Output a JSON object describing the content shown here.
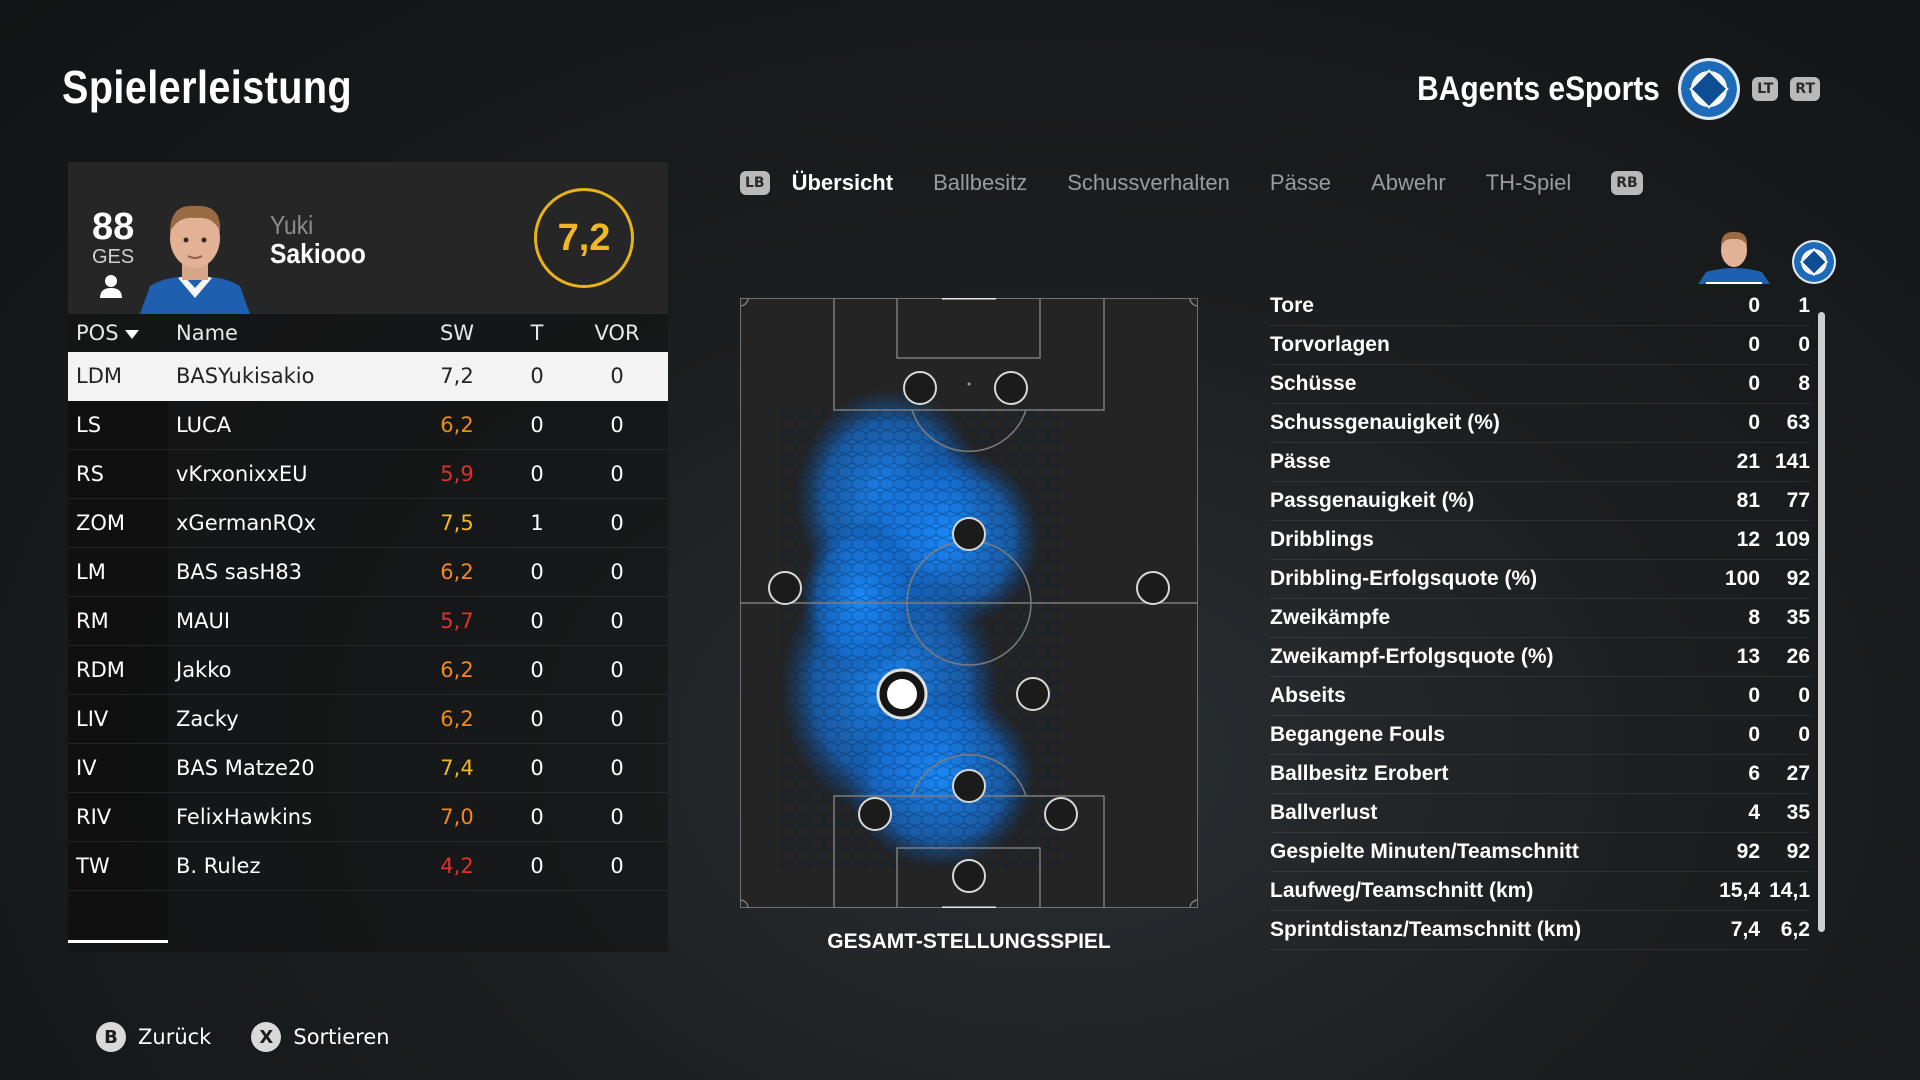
{
  "page_title": "Spielerleistung",
  "team": {
    "name": "BAgents eSports",
    "lt": "LT",
    "rt": "RT"
  },
  "player": {
    "overall": "88",
    "overall_label": "GES",
    "first_name": "Yuki",
    "last_name": "Sakiooo",
    "rating": "7,2"
  },
  "table": {
    "headers": {
      "pos": "POS",
      "name": "Name",
      "sw": "SW",
      "t": "T",
      "vor": "VOR"
    },
    "rows": [
      {
        "pos": "LDM",
        "name": "BASYukisakio",
        "sw": "7,2",
        "t": "0",
        "vor": "0"
      },
      {
        "pos": "LS",
        "name": "LUCA",
        "sw": "6,2",
        "t": "0",
        "vor": "0"
      },
      {
        "pos": "RS",
        "name": "vKrxonixxEU",
        "sw": "5,9",
        "t": "0",
        "vor": "0"
      },
      {
        "pos": "ZOM",
        "name": "xGermanRQx",
        "sw": "7,5",
        "t": "1",
        "vor": "0"
      },
      {
        "pos": "LM",
        "name": "BAS sasH83",
        "sw": "6,2",
        "t": "0",
        "vor": "0"
      },
      {
        "pos": "RM",
        "name": "MAUI",
        "sw": "5,7",
        "t": "0",
        "vor": "0"
      },
      {
        "pos": "RDM",
        "name": "Jakko",
        "sw": "6,2",
        "t": "0",
        "vor": "0"
      },
      {
        "pos": "LIV",
        "name": "Zacky",
        "sw": "6,2",
        "t": "0",
        "vor": "0"
      },
      {
        "pos": "IV",
        "name": "BAS Matze20",
        "sw": "7,4",
        "t": "0",
        "vor": "0"
      },
      {
        "pos": "RIV",
        "name": "FelixHawkins",
        "sw": "7,0",
        "t": "0",
        "vor": "0"
      },
      {
        "pos": "TW",
        "name": "B. Rulez",
        "sw": "4,2",
        "t": "0",
        "vor": "0"
      }
    ],
    "sw_colors": [
      "#222222",
      "#f08a1c",
      "#e0312b",
      "#f2b822",
      "#f08a1c",
      "#e0312b",
      "#f08a1c",
      "#f08a1c",
      "#f2b822",
      "#f08a1c",
      "#e0312b"
    ]
  },
  "tabs": {
    "lb": "LB",
    "rb": "RB",
    "items": [
      "Übersicht",
      "Ballbesitz",
      "Schussverhalten",
      "Pässe",
      "Abwehr",
      "TH-Spiel"
    ],
    "active": "Übersicht"
  },
  "pitch": {
    "caption": "GESAMT-STELLUNGSSPIEL"
  },
  "stats": [
    {
      "label": "Tore",
      "player": "0",
      "team": "1"
    },
    {
      "label": "Torvorlagen",
      "player": "0",
      "team": "0"
    },
    {
      "label": "Schüsse",
      "player": "0",
      "team": "8"
    },
    {
      "label": "Schussgenauigkeit (%)",
      "player": "0",
      "team": "63"
    },
    {
      "label": "Pässe",
      "player": "21",
      "team": "141"
    },
    {
      "label": "Passgenauigkeit (%)",
      "player": "81",
      "team": "77"
    },
    {
      "label": "Dribblings",
      "player": "12",
      "team": "109"
    },
    {
      "label": "Dribbling-Erfolgsquote (%)",
      "player": "100",
      "team": "92"
    },
    {
      "label": "Zweikämpfe",
      "player": "8",
      "team": "35"
    },
    {
      "label": "Zweikampf-Erfolgsquote (%)",
      "player": "13",
      "team": "26"
    },
    {
      "label": "Abseits",
      "player": "0",
      "team": "0"
    },
    {
      "label": "Begangene Fouls",
      "player": "0",
      "team": "0"
    },
    {
      "label": "Ballbesitz Erobert",
      "player": "6",
      "team": "27"
    },
    {
      "label": "Ballverlust",
      "player": "4",
      "team": "35"
    },
    {
      "label": "Gespielte Minuten/Teamschnitt",
      "player": "92",
      "team": "92"
    },
    {
      "label": "Laufweg/Teamschnitt (km)",
      "player": "15,4",
      "team": "14,1"
    },
    {
      "label": "Sprintdistanz/Teamschnitt (km)",
      "player": "7,4",
      "team": "6,2"
    }
  ],
  "footer": {
    "back_key": "B",
    "back_label": "Zurück",
    "sort_key": "X",
    "sort_label": "Sortieren"
  },
  "colors": {
    "accent": "#f2b822",
    "heatmap": "#1a8cff",
    "selected_row": "#f3f3f3"
  }
}
